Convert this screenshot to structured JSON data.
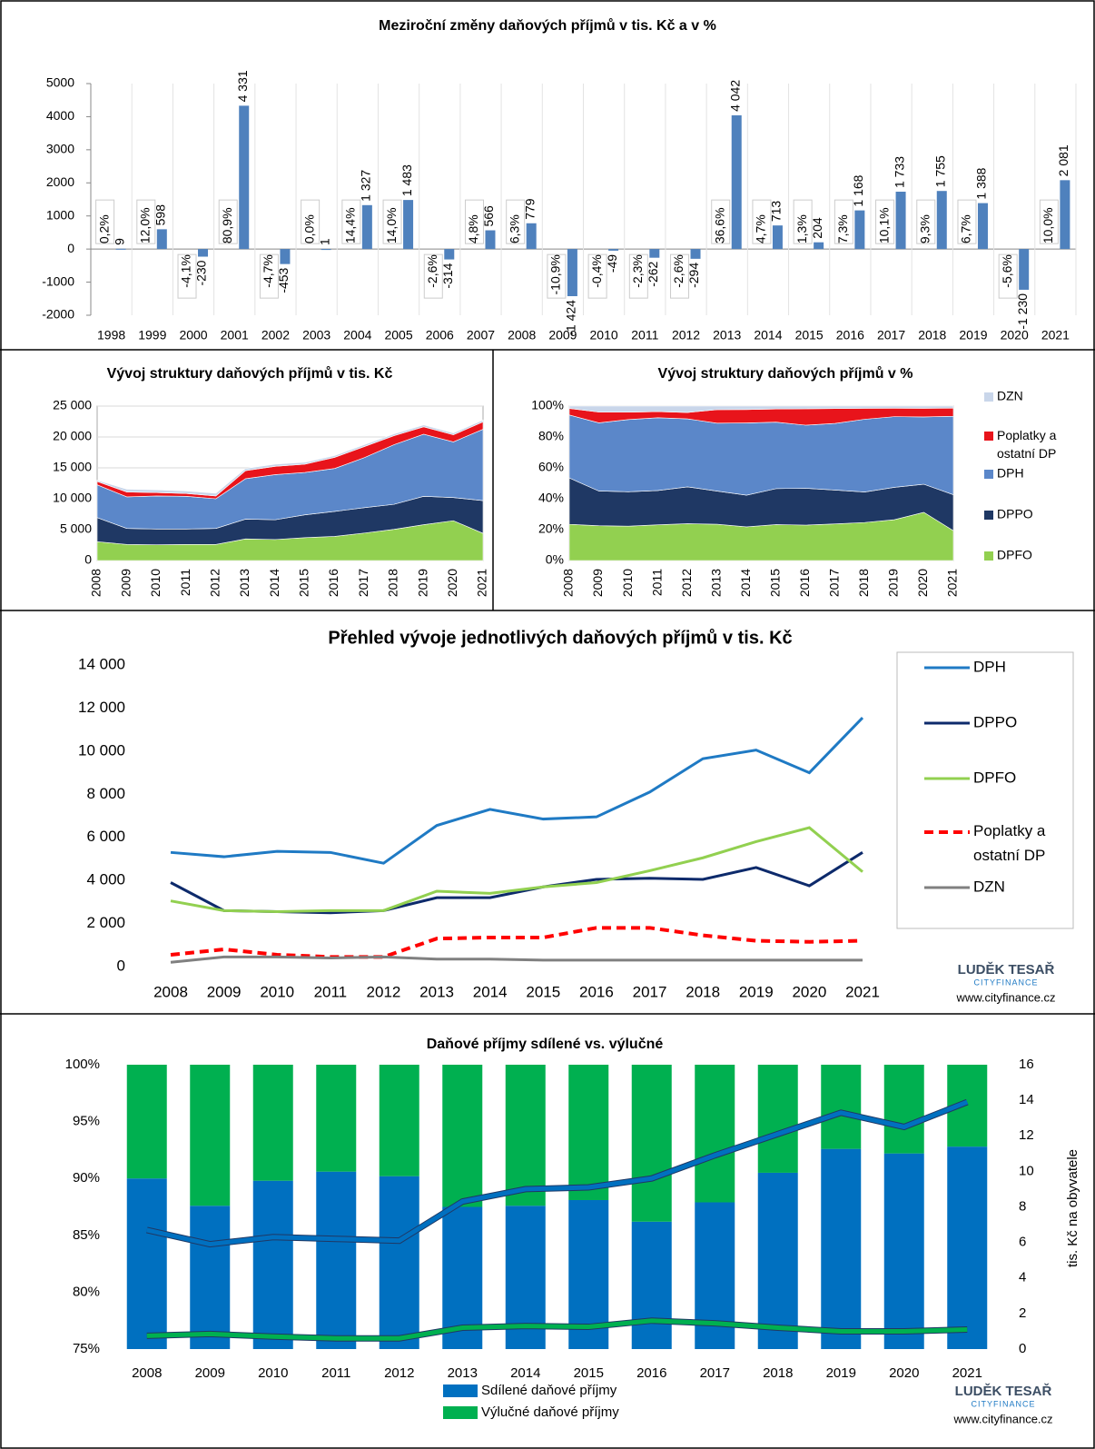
{
  "branding": {
    "name": "LUDĚK TESAŘ",
    "tag": "CITYFINANCE",
    "url": "www.cityfinance.cz"
  },
  "chart_data": [
    {
      "type": "bar",
      "title": "Meziroční změny daňových příjmů v tis. Kč a v %",
      "categories": [
        "1998",
        "1999",
        "2000",
        "2001",
        "2002",
        "2003",
        "2004",
        "2005",
        "2006",
        "2007",
        "2008",
        "2009",
        "2010",
        "2011",
        "2012",
        "2013",
        "2014",
        "2015",
        "2016",
        "2017",
        "2018",
        "2019",
        "2020",
        "2021"
      ],
      "values": [
        9,
        598,
        -230,
        4331,
        -453,
        1,
        1327,
        1483,
        -314,
        566,
        779,
        -1424,
        -49,
        -262,
        -294,
        4042,
        713,
        204,
        1168,
        1733,
        1755,
        1388,
        -1230,
        2081
      ],
      "value_labels": [
        "9",
        "598",
        "-230",
        "4 331",
        "-453",
        "1",
        "1 327",
        "1 483",
        "-314",
        "566",
        "779",
        "-1 424",
        "-49",
        "-262",
        "-294",
        "4 042",
        "713",
        "204",
        "1 168",
        "1 733",
        "1 755",
        "1 388",
        "-1 230",
        "2 081"
      ],
      "percent_labels": [
        "0,2%",
        "12,0%",
        "-4,1%",
        "80,9%",
        "-4,7%",
        "0,0%",
        "14,4%",
        "14,0%",
        "-2,6%",
        "4,8%",
        "6,3%",
        "-10,9%",
        "-0,4%",
        "-2,3%",
        "-2,6%",
        "36,6%",
        "4,7%",
        "1,3%",
        "7,3%",
        "10,1%",
        "9,3%",
        "6,7%",
        "-5,6%",
        "10,0%"
      ],
      "color": "#4f81bd",
      "ylim": [
        -2000,
        5000
      ],
      "yticks": [
        -2000,
        -1000,
        0,
        1000,
        2000,
        3000,
        4000,
        5000
      ]
    },
    {
      "type": "stacked_area",
      "title": "Vývoj struktury daňových příjmů v tis. Kč",
      "categories": [
        "2008",
        "2009",
        "2010",
        "2011",
        "2012",
        "2013",
        "2014",
        "2015",
        "2016",
        "2017",
        "2018",
        "2019",
        "2020",
        "2021"
      ],
      "series": [
        {
          "name": "DPFO",
          "color": "#92d050",
          "values": [
            3050,
            2600,
            2550,
            2600,
            2600,
            3500,
            3400,
            3700,
            3900,
            4450,
            5050,
            5800,
            6450,
            4400
          ]
        },
        {
          "name": "DPPO",
          "color": "#1f3864",
          "values": [
            3900,
            2600,
            2550,
            2500,
            2600,
            3200,
            3200,
            3700,
            4050,
            4100,
            4050,
            4600,
            3750,
            5300
          ]
        },
        {
          "name": "DPH",
          "color": "#5b87c9",
          "values": [
            5300,
            5100,
            5350,
            5300,
            4800,
            6550,
            7300,
            6850,
            6950,
            8100,
            9650,
            10050,
            9000,
            11550
          ]
        },
        {
          "name": "Poplatky a ostatní DP",
          "color": "#e8141b",
          "values": [
            550,
            800,
            550,
            450,
            450,
            1300,
            1350,
            1350,
            1800,
            1800,
            1450,
            1200,
            1150,
            1200
          ]
        },
        {
          "name": "DZN",
          "color": "#c9d6ea",
          "values": [
            200,
            450,
            450,
            400,
            450,
            350,
            350,
            300,
            300,
            300,
            300,
            300,
            300,
            300
          ]
        }
      ],
      "ylim": [
        0,
        25000
      ],
      "yticks": [
        0,
        {
          "value": 5000,
          "label": "5 000"
        },
        {
          "value": 10000,
          "label": "10 000"
        },
        {
          "value": 15000,
          "label": "15 000"
        },
        {
          "value": 20000,
          "label": "20 000"
        },
        {
          "value": 25000,
          "label": "25 000"
        }
      ]
    },
    {
      "type": "percent_area",
      "title": "Vývoj struktury daňových příjmů v %",
      "ylim": [
        0,
        100
      ],
      "yticks": [
        {
          "value": 0,
          "label": "0%"
        },
        {
          "value": 20,
          "label": "20%"
        },
        {
          "value": 40,
          "label": "40%"
        },
        {
          "value": 60,
          "label": "60%"
        },
        {
          "value": 80,
          "label": "80%"
        },
        {
          "value": 100,
          "label": "100%"
        }
      ]
    },
    {
      "type": "line",
      "title": "Přehled vývoje jednotlivých daňových příjmů v tis. Kč",
      "categories": [
        "2008",
        "2009",
        "2010",
        "2011",
        "2012",
        "2013",
        "2014",
        "2015",
        "2016",
        "2017",
        "2018",
        "2019",
        "2020",
        "2021"
      ],
      "series": [
        {
          "name": "DPH",
          "color": "#1f7ac4",
          "values": [
            5300,
            5100,
            5350,
            5300,
            4800,
            6550,
            7300,
            6850,
            6950,
            8100,
            9650,
            10050,
            9000,
            11550
          ]
        },
        {
          "name": "DPPO",
          "color": "#0d2a6b",
          "values": [
            3900,
            2600,
            2550,
            2500,
            2600,
            3200,
            3200,
            3700,
            4050,
            4100,
            4050,
            4600,
            3750,
            5300
          ]
        },
        {
          "name": "DPFO",
          "color": "#92d050",
          "values": [
            3050,
            2600,
            2550,
            2600,
            2600,
            3500,
            3400,
            3700,
            3900,
            4450,
            5050,
            5800,
            6450,
            4400
          ]
        },
        {
          "name": "Poplatky a ostatní DP",
          "color": "#ff0000",
          "dashed": true,
          "values": [
            550,
            800,
            550,
            450,
            450,
            1300,
            1350,
            1350,
            1800,
            1800,
            1450,
            1200,
            1150,
            1200
          ]
        },
        {
          "name": "DZN",
          "color": "#808080",
          "values": [
            200,
            450,
            450,
            400,
            450,
            350,
            350,
            300,
            300,
            300,
            300,
            300,
            300,
            300
          ]
        }
      ],
      "ylim": [
        0,
        14000
      ],
      "yticks": [
        0,
        {
          "value": 2000,
          "label": "2 000"
        },
        {
          "value": 4000,
          "label": "4 000"
        },
        {
          "value": 6000,
          "label": "6 000"
        },
        {
          "value": 8000,
          "label": "8 000"
        },
        {
          "value": 10000,
          "label": "10 000"
        },
        {
          "value": 12000,
          "label": "12 000"
        },
        {
          "value": 14000,
          "label": "14 000"
        }
      ]
    },
    {
      "type": "combo",
      "title": "Daňové příjmy sdílené vs. výlučné",
      "categories": [
        "2008",
        "2009",
        "2010",
        "2011",
        "2012",
        "2013",
        "2014",
        "2015",
        "2016",
        "2017",
        "2018",
        "2019",
        "2020",
        "2021"
      ],
      "series": [
        {
          "name": "Sdílené daňové příjmy",
          "color": "#0070c0",
          "type": "bar",
          "values": [
            90.0,
            87.6,
            89.8,
            90.6,
            90.2,
            87.5,
            87.6,
            88.1,
            86.2,
            87.9,
            90.5,
            92.6,
            92.2,
            92.8
          ]
        },
        {
          "name": "Výlučné daňové příjmy",
          "color": "#00b050",
          "type": "bar",
          "values": [
            10.0,
            12.4,
            10.2,
            9.4,
            9.8,
            12.5,
            12.4,
            11.9,
            13.8,
            12.1,
            9.5,
            7.4,
            7.8,
            7.2
          ]
        },
        {
          "color": "#0070c0",
          "type": "line",
          "axis": "y2",
          "values": [
            6.7,
            5.9,
            6.3,
            6.2,
            6.1,
            8.3,
            9.0,
            9.1,
            9.6,
            10.9,
            12.1,
            13.3,
            12.5,
            13.9
          ]
        },
        {
          "color": "#00b050",
          "type": "line",
          "axis": "y2",
          "values": [
            0.75,
            0.85,
            0.7,
            0.6,
            0.6,
            1.2,
            1.3,
            1.25,
            1.6,
            1.45,
            1.2,
            1.0,
            1.0,
            1.1
          ]
        }
      ],
      "ylim": [
        75,
        100
      ],
      "yticks": [
        {
          "value": 75,
          "label": "75%"
        },
        {
          "value": 80,
          "label": "80%"
        },
        {
          "value": 85,
          "label": "85%"
        },
        {
          "value": 90,
          "label": "90%"
        },
        {
          "value": 95,
          "label": "95%"
        },
        {
          "value": 100,
          "label": "100%"
        }
      ],
      "y2label": "tis. Kč na obyvatele",
      "y2lim": [
        0,
        16
      ],
      "y2ticks": [
        0,
        2,
        4,
        6,
        8,
        10,
        12,
        14,
        16
      ]
    }
  ]
}
